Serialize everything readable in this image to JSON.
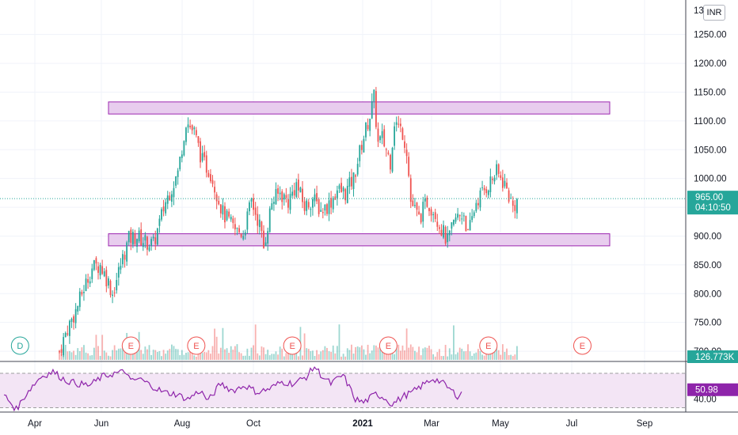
{
  "chart_data": {
    "type": "candlestick",
    "currency_label": "INR",
    "price_axis": {
      "ylim": [
        685,
        1310
      ],
      "ticks": [
        "1250.00",
        "1200.00",
        "1150.00",
        "1100.00",
        "1050.00",
        "1000.00",
        "950.00",
        "900.00",
        "850.00",
        "800.00",
        "750.00",
        "700.00"
      ],
      "top_partial_tick": "13"
    },
    "x_axis": {
      "ticks": [
        {
          "label": "Apr",
          "bold": false
        },
        {
          "label": "Jun",
          "bold": false
        },
        {
          "label": "Aug",
          "bold": false
        },
        {
          "label": "Oct",
          "bold": false
        },
        {
          "label": "2021",
          "bold": true
        },
        {
          "label": "Mar",
          "bold": false
        },
        {
          "label": "May",
          "bold": false
        },
        {
          "label": "Jul",
          "bold": false
        },
        {
          "label": "Sep",
          "bold": false
        }
      ]
    },
    "price_path": [
      [
        0,
        700
      ],
      [
        4,
        740
      ],
      [
        8,
        770
      ],
      [
        12,
        810
      ],
      [
        16,
        845
      ],
      [
        20,
        850
      ],
      [
        24,
        820
      ],
      [
        26,
        800
      ],
      [
        30,
        850
      ],
      [
        34,
        895
      ],
      [
        38,
        900
      ],
      [
        42,
        890
      ],
      [
        46,
        885
      ],
      [
        52,
        960
      ],
      [
        58,
        1010
      ],
      [
        62,
        1100
      ],
      [
        66,
        1080
      ],
      [
        70,
        1030
      ],
      [
        74,
        1010
      ],
      [
        80,
        940
      ],
      [
        86,
        910
      ],
      [
        90,
        905
      ],
      [
        94,
        960
      ],
      [
        98,
        920
      ],
      [
        100,
        880
      ],
      [
        104,
        960
      ],
      [
        108,
        975
      ],
      [
        112,
        960
      ],
      [
        116,
        990
      ],
      [
        120,
        950
      ],
      [
        124,
        965
      ],
      [
        128,
        945
      ],
      [
        132,
        955
      ],
      [
        136,
        980
      ],
      [
        140,
        975
      ],
      [
        144,
        1000
      ],
      [
        148,
        1060
      ],
      [
        152,
        1110
      ],
      [
        154,
        1140
      ],
      [
        156,
        1060
      ],
      [
        158,
        1070
      ],
      [
        162,
        1030
      ],
      [
        164,
        1100
      ],
      [
        168,
        1080
      ],
      [
        170,
        1050
      ],
      [
        172,
        960
      ],
      [
        176,
        930
      ],
      [
        180,
        960
      ],
      [
        184,
        940
      ],
      [
        186,
        920
      ],
      [
        190,
        890
      ],
      [
        194,
        930
      ],
      [
        198,
        940
      ],
      [
        200,
        900
      ],
      [
        204,
        960
      ],
      [
        208,
        980
      ],
      [
        212,
        1000
      ],
      [
        214,
        1010
      ],
      [
        218,
        990
      ],
      [
        222,
        950
      ],
      [
        224,
        960
      ]
    ],
    "zones": [
      {
        "from_idx": 22,
        "to_idx": 250,
        "low": 1112,
        "high": 1133
      },
      {
        "from_idx": 22,
        "to_idx": 250,
        "low": 883,
        "high": 904
      }
    ],
    "last_price": {
      "value": 965,
      "label": "965.00",
      "countdown": "04:10:50",
      "color": "#26a69a"
    },
    "volume": {
      "last_label": "126.773K",
      "color": "#26a69a"
    },
    "rsi": {
      "value_label": "50.98",
      "tick_label": "40.00",
      "band": [
        30,
        70
      ],
      "ylim": [
        25,
        82
      ],
      "color": "#8e24aa",
      "path": [
        [
          0,
          45
        ],
        [
          6,
          28
        ],
        [
          12,
          50
        ],
        [
          18,
          66
        ],
        [
          24,
          72
        ],
        [
          30,
          62
        ],
        [
          36,
          58
        ],
        [
          42,
          56
        ],
        [
          48,
          66
        ],
        [
          54,
          70
        ],
        [
          60,
          72
        ],
        [
          62,
          60
        ],
        [
          66,
          64
        ],
        [
          72,
          56
        ],
        [
          78,
          48
        ],
        [
          84,
          46
        ],
        [
          90,
          40
        ],
        [
          96,
          50
        ],
        [
          100,
          38
        ],
        [
          106,
          58
        ],
        [
          112,
          50
        ],
        [
          118,
          56
        ],
        [
          124,
          48
        ],
        [
          130,
          52
        ],
        [
          136,
          60
        ],
        [
          142,
          58
        ],
        [
          148,
          66
        ],
        [
          152,
          78
        ],
        [
          156,
          66
        ],
        [
          160,
          58
        ],
        [
          166,
          68
        ],
        [
          172,
          40
        ],
        [
          176,
          36
        ],
        [
          182,
          46
        ],
        [
          186,
          42
        ],
        [
          190,
          34
        ],
        [
          196,
          44
        ],
        [
          200,
          48
        ],
        [
          206,
          58
        ],
        [
          210,
          64
        ],
        [
          214,
          60
        ],
        [
          218,
          52
        ],
        [
          222,
          44
        ],
        [
          226,
          50
        ]
      ]
    },
    "events": [
      {
        "letter": "D",
        "idx": 4,
        "color": "#26a69a"
      },
      {
        "letter": "E",
        "idx": 35,
        "color": "#ef5350"
      },
      {
        "letter": "E",
        "idx": 67,
        "color": "#ef5350"
      },
      {
        "letter": "E",
        "idx": 114,
        "color": "#ef5350"
      },
      {
        "letter": "E",
        "idx": 161,
        "color": "#ef5350"
      },
      {
        "letter": "E",
        "idx": 210,
        "color": "#ef5350"
      },
      {
        "letter": "E",
        "idx": 256,
        "color": "#ef5350"
      }
    ],
    "colors": {
      "up": "#26a69a",
      "down": "#ef5350",
      "zone_fill": "#e8cdee",
      "zone_stroke": "#9c27b0",
      "grid": "#f0f3fa",
      "rsi_band_fill": "#f3e5f5"
    }
  }
}
